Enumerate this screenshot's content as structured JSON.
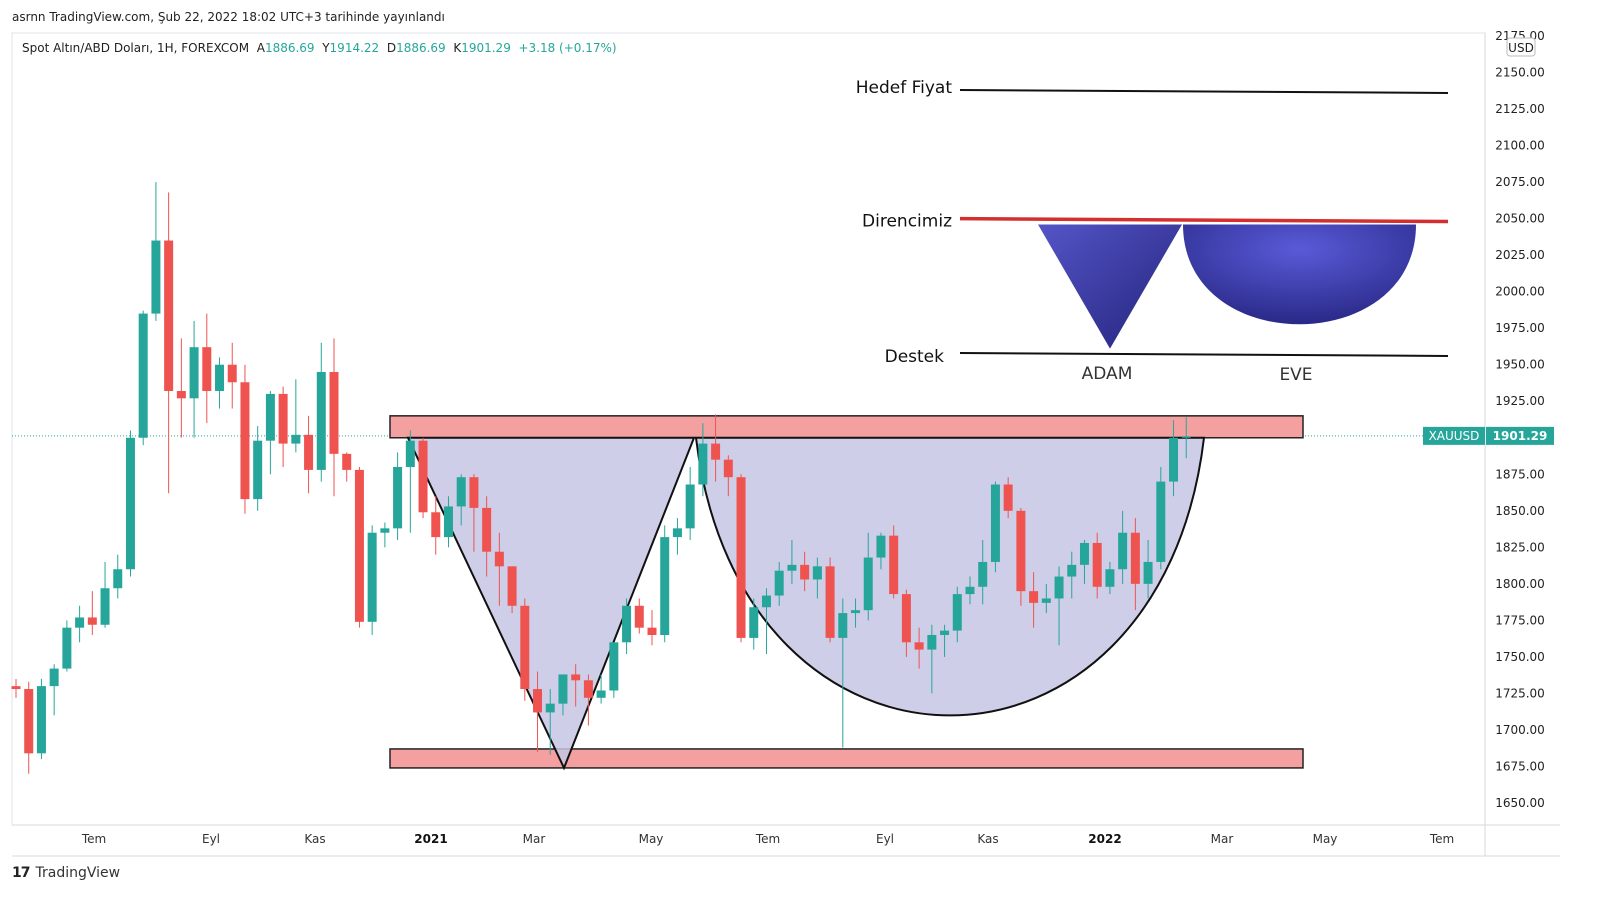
{
  "header": {
    "published": "asrnn TradingView.com, Şub 22, 2022 18:02 UTC+3 tarihinde yayınlandı"
  },
  "legend": {
    "symbol": "Spot Altın/ABD Doları, 1H, FOREXCOM",
    "open_label": "A",
    "open": "1886.69",
    "high_label": "Y",
    "high": "1914.22",
    "low_label": "D",
    "low": "1886.69",
    "close_label": "K",
    "close": "1901.29",
    "change": "+3.18 (+0.17%)"
  },
  "footer": {
    "brand": "TradingView"
  },
  "colors": {
    "up": "#26a69a",
    "down": "#ef5350",
    "zone": "#f4a0a0",
    "pattern": "#c5c5e5",
    "resistance": "#d32f2f",
    "shape": "#3f3fb0"
  },
  "chart_data": {
    "type": "candlestick",
    "currency": "USD",
    "ylim": [
      1637.5,
      2177.5
    ],
    "y_ticks": [
      1650,
      1675,
      1700,
      1725,
      1750,
      1775,
      1800,
      1825,
      1850,
      1875,
      1900,
      1925,
      1950,
      1975,
      2000,
      2025,
      2050,
      2075,
      2100,
      2125,
      2150,
      2175
    ],
    "y_tick_labels": [
      "1650.00",
      "1675.00",
      "1700.00",
      "1725.00",
      "1750.00",
      "1775.00",
      "1800.00",
      "1825.00",
      "1850.00",
      "1875.00",
      "1900.00",
      "1925.00",
      "1950.00",
      "1975.00",
      "2000.00",
      "2025.00",
      "2050.00",
      "2075.00",
      "2100.00",
      "2125.00",
      "2150.00",
      "2175.00"
    ],
    "x_ticks": [
      {
        "label": "Tem",
        "bold": false
      },
      {
        "label": "Eyl",
        "bold": false
      },
      {
        "label": "Kas",
        "bold": false
      },
      {
        "label": "2021",
        "bold": true
      },
      {
        "label": "Mar",
        "bold": false
      },
      {
        "label": "May",
        "bold": false
      },
      {
        "label": "Tem",
        "bold": false
      },
      {
        "label": "Eyl",
        "bold": false
      },
      {
        "label": "Kas",
        "bold": false
      },
      {
        "label": "2022",
        "bold": true
      },
      {
        "label": "Mar",
        "bold": false
      },
      {
        "label": "May",
        "bold": false
      },
      {
        "label": "Tem",
        "bold": false
      }
    ],
    "last_price": {
      "symbol": "XAUUSD",
      "value": 1901.29
    },
    "candles": [
      [
        1730,
        1735,
        1722,
        1728
      ],
      [
        1728,
        1733,
        1670,
        1684
      ],
      [
        1684,
        1735,
        1680,
        1730
      ],
      [
        1730,
        1745,
        1710,
        1742
      ],
      [
        1742,
        1775,
        1740,
        1770
      ],
      [
        1770,
        1785,
        1760,
        1777
      ],
      [
        1777,
        1795,
        1765,
        1772
      ],
      [
        1772,
        1815,
        1770,
        1797
      ],
      [
        1797,
        1820,
        1790,
        1810
      ],
      [
        1810,
        1905,
        1805,
        1900
      ],
      [
        1900,
        1987,
        1895,
        1985
      ],
      [
        1985,
        2075,
        1980,
        2035
      ],
      [
        2035,
        2068,
        1862,
        1932
      ],
      [
        1932,
        1968,
        1900,
        1927
      ],
      [
        1927,
        1980,
        1900,
        1962
      ],
      [
        1962,
        1985,
        1910,
        1932
      ],
      [
        1932,
        1955,
        1920,
        1950
      ],
      [
        1950,
        1965,
        1920,
        1938
      ],
      [
        1938,
        1950,
        1848,
        1858
      ],
      [
        1858,
        1908,
        1850,
        1898
      ],
      [
        1898,
        1932,
        1875,
        1930
      ],
      [
        1930,
        1935,
        1880,
        1896
      ],
      [
        1896,
        1940,
        1890,
        1902
      ],
      [
        1902,
        1915,
        1862,
        1878
      ],
      [
        1878,
        1965,
        1870,
        1945
      ],
      [
        1945,
        1968,
        1860,
        1889
      ],
      [
        1889,
        1890,
        1870,
        1878
      ],
      [
        1878,
        1880,
        1770,
        1774
      ],
      [
        1774,
        1840,
        1765,
        1835
      ],
      [
        1835,
        1842,
        1825,
        1838
      ],
      [
        1838,
        1890,
        1830,
        1880
      ],
      [
        1880,
        1905,
        1835,
        1898
      ],
      [
        1898,
        1900,
        1845,
        1849
      ],
      [
        1849,
        1860,
        1820,
        1832
      ],
      [
        1832,
        1860,
        1825,
        1853
      ],
      [
        1853,
        1875,
        1840,
        1873
      ],
      [
        1873,
        1875,
        1822,
        1852
      ],
      [
        1852,
        1860,
        1805,
        1822
      ],
      [
        1822,
        1835,
        1785,
        1812
      ],
      [
        1812,
        1812,
        1780,
        1785
      ],
      [
        1785,
        1790,
        1720,
        1728
      ],
      [
        1728,
        1740,
        1685,
        1712
      ],
      [
        1712,
        1728,
        1683,
        1718
      ],
      [
        1718,
        1738,
        1710,
        1738
      ],
      [
        1738,
        1745,
        1716,
        1734
      ],
      [
        1734,
        1738,
        1703,
        1722
      ],
      [
        1722,
        1738,
        1718,
        1727
      ],
      [
        1727,
        1760,
        1722,
        1760
      ],
      [
        1760,
        1790,
        1752,
        1785
      ],
      [
        1785,
        1790,
        1766,
        1770
      ],
      [
        1770,
        1782,
        1758,
        1765
      ],
      [
        1765,
        1840,
        1760,
        1832
      ],
      [
        1832,
        1845,
        1820,
        1838
      ],
      [
        1838,
        1880,
        1830,
        1868
      ],
      [
        1868,
        1910,
        1860,
        1896
      ],
      [
        1896,
        1916,
        1870,
        1885
      ],
      [
        1885,
        1888,
        1860,
        1873
      ],
      [
        1873,
        1875,
        1760,
        1763
      ],
      [
        1763,
        1790,
        1755,
        1784
      ],
      [
        1784,
        1797,
        1752,
        1792
      ],
      [
        1792,
        1815,
        1785,
        1809
      ],
      [
        1809,
        1830,
        1800,
        1813
      ],
      [
        1813,
        1822,
        1795,
        1803
      ],
      [
        1803,
        1818,
        1790,
        1812
      ],
      [
        1812,
        1818,
        1760,
        1763
      ],
      [
        1763,
        1790,
        1688,
        1780
      ],
      [
        1780,
        1790,
        1770,
        1782
      ],
      [
        1782,
        1835,
        1775,
        1818
      ],
      [
        1818,
        1835,
        1810,
        1833
      ],
      [
        1833,
        1840,
        1790,
        1793
      ],
      [
        1793,
        1796,
        1750,
        1760
      ],
      [
        1760,
        1770,
        1742,
        1755
      ],
      [
        1755,
        1772,
        1725,
        1765
      ],
      [
        1765,
        1772,
        1750,
        1768
      ],
      [
        1768,
        1798,
        1760,
        1793
      ],
      [
        1793,
        1805,
        1786,
        1798
      ],
      [
        1798,
        1830,
        1786,
        1815
      ],
      [
        1815,
        1870,
        1808,
        1868
      ],
      [
        1868,
        1873,
        1845,
        1850
      ],
      [
        1850,
        1852,
        1785,
        1795
      ],
      [
        1795,
        1808,
        1770,
        1787
      ],
      [
        1787,
        1800,
        1780,
        1790
      ],
      [
        1790,
        1812,
        1758,
        1805
      ],
      [
        1805,
        1822,
        1790,
        1813
      ],
      [
        1813,
        1830,
        1800,
        1828
      ],
      [
        1828,
        1835,
        1790,
        1798
      ],
      [
        1798,
        1815,
        1793,
        1810
      ],
      [
        1810,
        1850,
        1800,
        1835
      ],
      [
        1835,
        1845,
        1782,
        1800
      ],
      [
        1800,
        1830,
        1790,
        1815
      ],
      [
        1815,
        1880,
        1810,
        1870
      ],
      [
        1870,
        1912,
        1860,
        1900
      ],
      [
        1900,
        1914,
        1886,
        1901
      ]
    ]
  },
  "drawings": {
    "upper_zone": [
      1900,
      1915
    ],
    "lower_zone": [
      1674,
      1687
    ],
    "hedef_line": [
      2138,
      2136
    ],
    "resistance_line": [
      2050,
      2048
    ],
    "support_line": [
      1958,
      1956
    ],
    "adam_shape": {
      "top": 2046,
      "bottom": 1961
    },
    "eve_shape": {
      "top": 2046,
      "bottom": 1959
    },
    "labels": {
      "target": "Hedef Fiyat",
      "resistance": "Direncimiz",
      "support": "Destek",
      "adam": "ADAM",
      "eve": "EVE"
    }
  }
}
